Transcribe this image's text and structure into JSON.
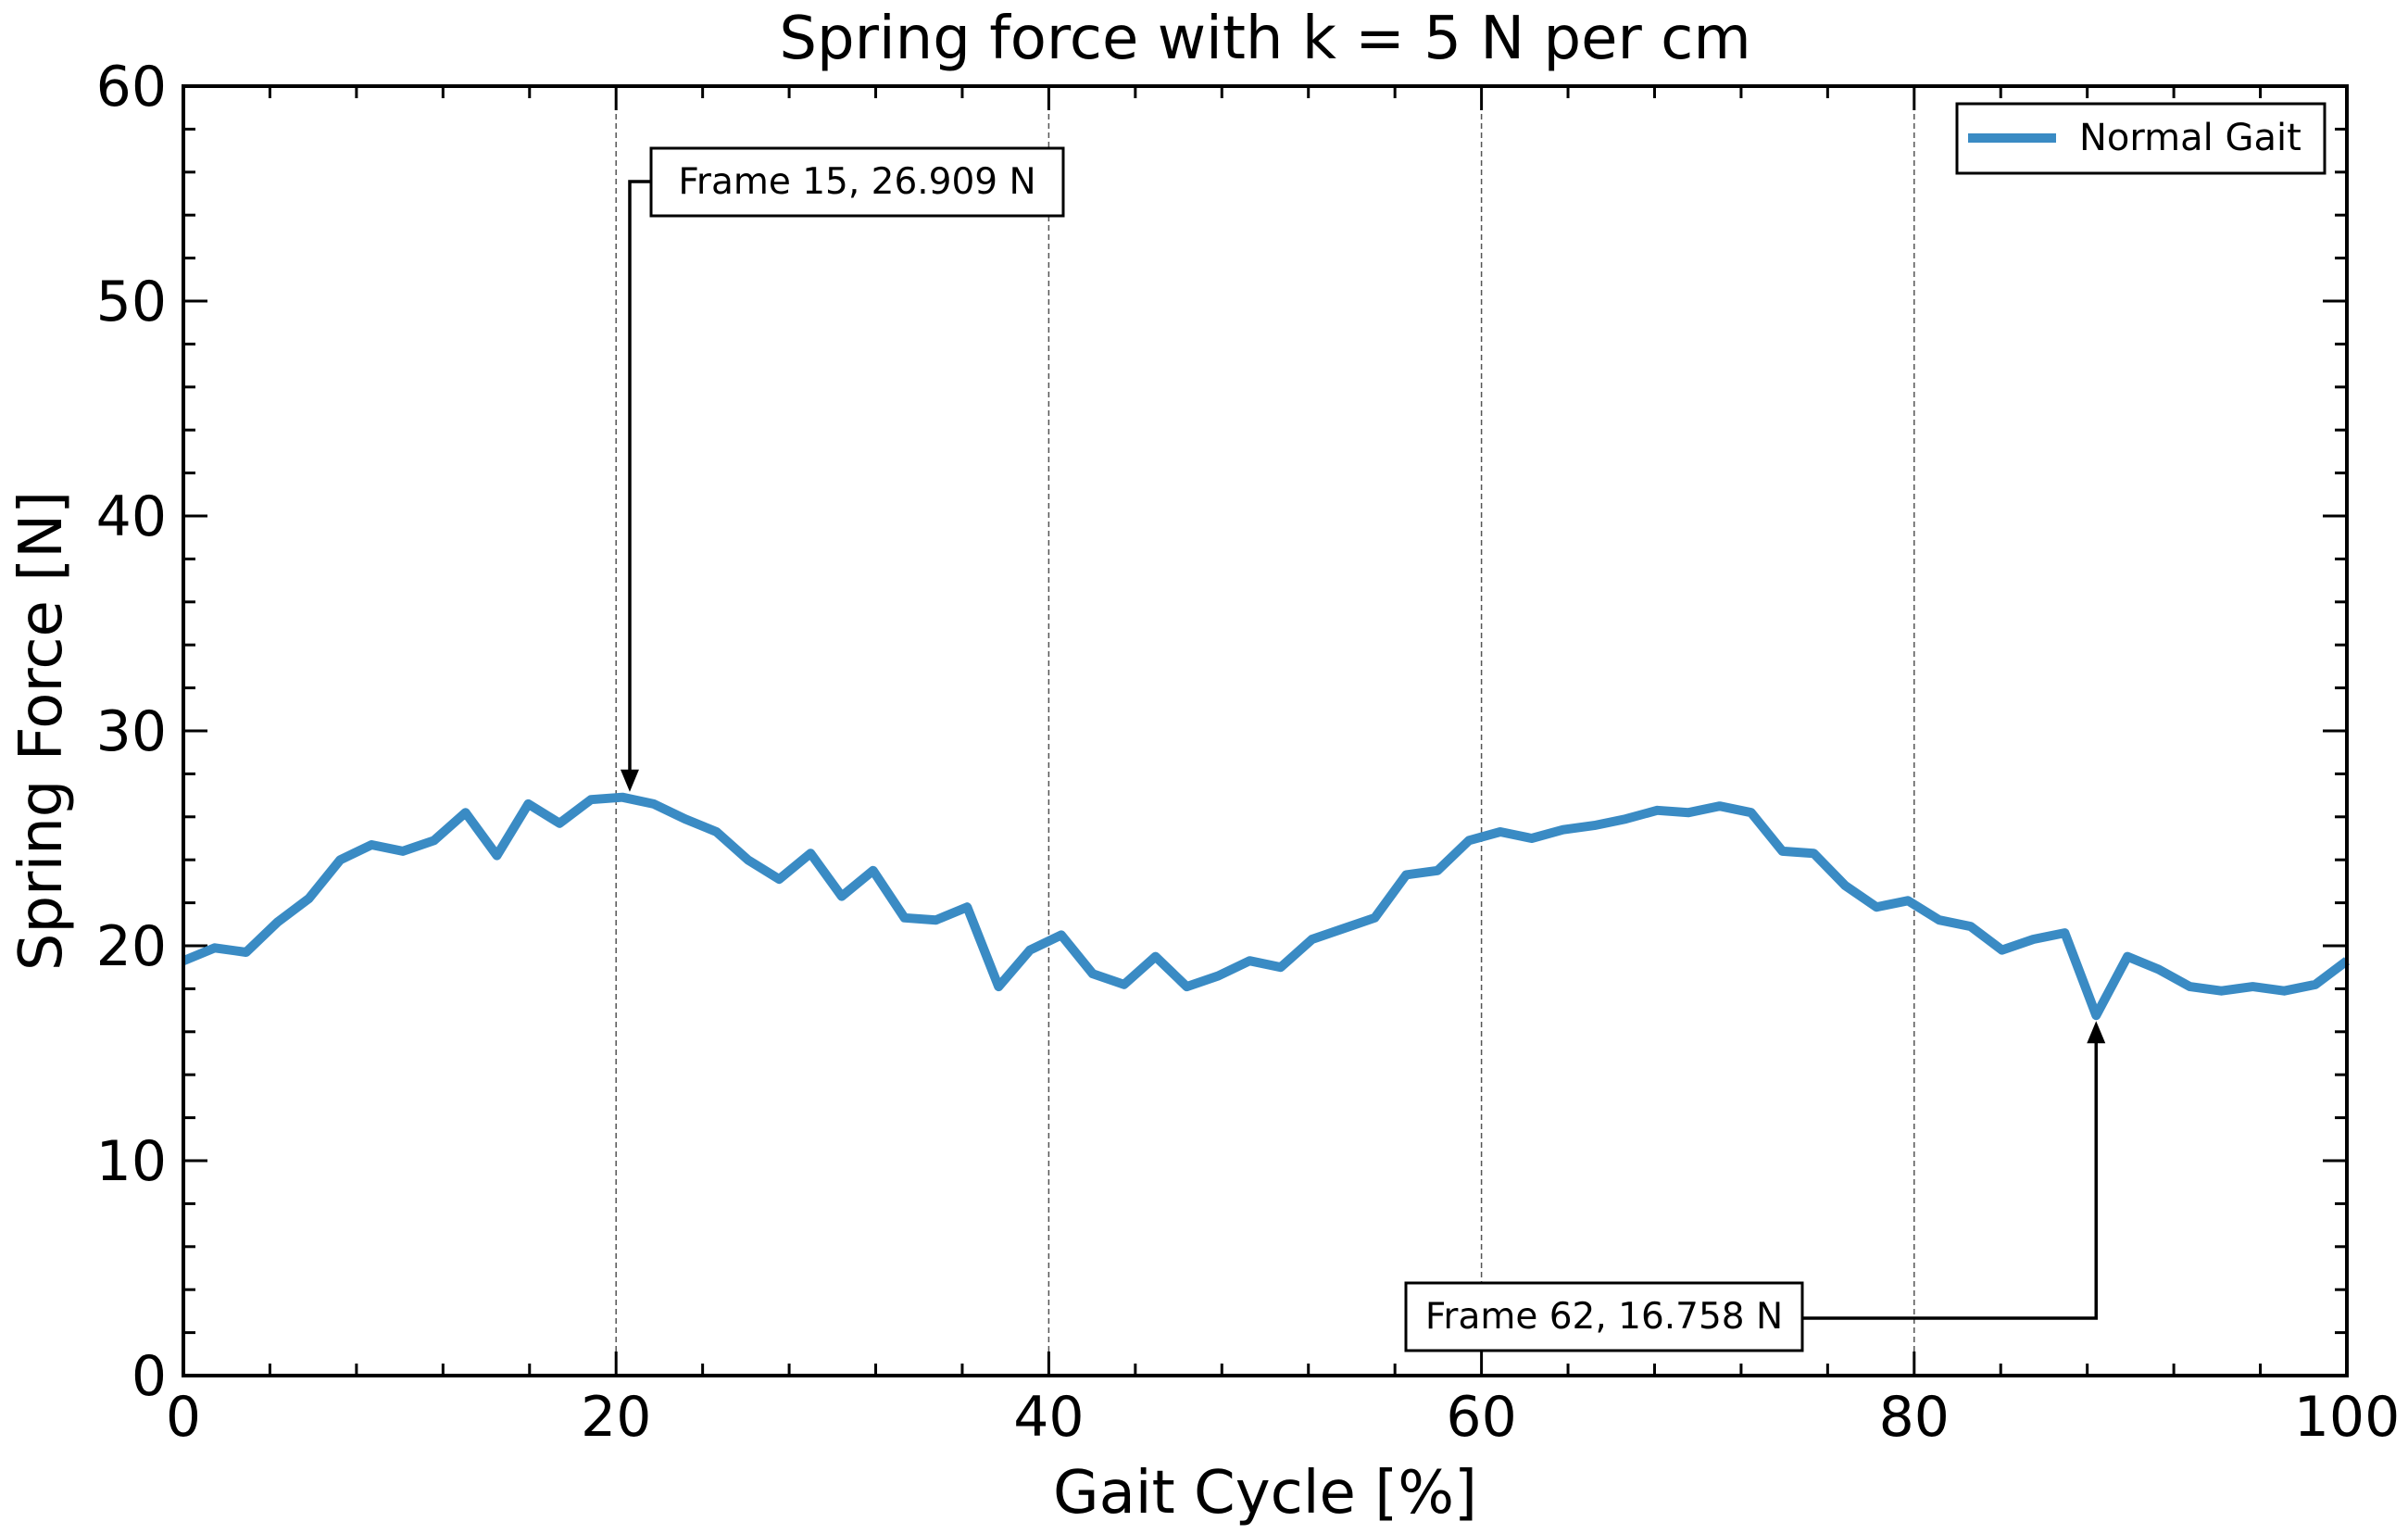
{
  "chart_data": {
    "type": "line",
    "title": "Spring force with k = 5 N per cm",
    "xlabel": "Gait Cycle [%]",
    "ylabel": "Spring Force [N]",
    "xlim": [
      0,
      100
    ],
    "ylim": [
      0,
      60
    ],
    "xticks": [
      0,
      20,
      40,
      60,
      80,
      100
    ],
    "yticks": [
      0,
      10,
      20,
      30,
      40,
      50,
      60
    ],
    "xtick_labels": [
      "0",
      "20",
      "40",
      "60",
      "80",
      "100"
    ],
    "ytick_labels": [
      "0",
      "10",
      "20",
      "30",
      "40",
      "50",
      "60"
    ],
    "vertical_gridlines_at": [
      20,
      40,
      60,
      80
    ],
    "grid": "vertical dashed",
    "legend_position": "top-right",
    "series": [
      {
        "name": "Normal Gait",
        "color": "#3a8bc4",
        "x": [
          0,
          1.45,
          2.9,
          4.35,
          5.8,
          7.25,
          8.7,
          10.14,
          11.59,
          13.04,
          14.49,
          15.94,
          17.39,
          18.84,
          20.29,
          21.74,
          23.19,
          24.64,
          26.09,
          27.54,
          28.99,
          30.43,
          31.88,
          33.33,
          34.78,
          36.23,
          37.68,
          39.13,
          40.58,
          42.03,
          43.48,
          44.93,
          46.38,
          47.83,
          49.28,
          50.72,
          52.17,
          53.62,
          55.07,
          56.52,
          57.97,
          59.42,
          60.87,
          62.32,
          63.77,
          65.22,
          66.67,
          68.12,
          69.57,
          71.01,
          72.46,
          73.91,
          75.36,
          76.81,
          78.26,
          79.71,
          81.16,
          82.61,
          84.06,
          85.51,
          86.96,
          88.41,
          89.86,
          91.3,
          92.75,
          94.2,
          95.65,
          97.1,
          98.55,
          100
        ],
        "y": [
          19.3,
          19.9,
          19.7,
          21.1,
          22.2,
          24.0,
          24.7,
          24.4,
          24.9,
          26.2,
          24.2,
          26.6,
          25.7,
          26.8,
          26.909,
          26.6,
          25.9,
          25.3,
          24.0,
          23.1,
          24.3,
          22.3,
          23.5,
          21.3,
          21.2,
          21.8,
          18.1,
          19.8,
          20.5,
          18.7,
          18.2,
          19.5,
          18.1,
          18.6,
          19.3,
          19.0,
          20.3,
          20.8,
          21.3,
          23.3,
          23.5,
          24.9,
          25.3,
          25.0,
          25.4,
          25.6,
          25.9,
          26.3,
          26.2,
          26.5,
          26.2,
          24.4,
          24.3,
          22.8,
          21.8,
          22.1,
          21.2,
          20.9,
          19.8,
          20.3,
          20.6,
          16.758,
          19.5,
          18.9,
          18.1,
          17.9,
          18.1,
          17.9,
          18.2,
          19.3
        ]
      }
    ],
    "annotations": [
      {
        "text": "Frame 15, 26.909 N",
        "x": 20.29,
        "y": 26.909,
        "text_x": 20.7,
        "text_y": 55.4
      },
      {
        "text": "Frame 62, 16.758 N",
        "x": 88.41,
        "y": 16.758,
        "text_x": 84.3,
        "text_y": 2.6
      }
    ]
  }
}
